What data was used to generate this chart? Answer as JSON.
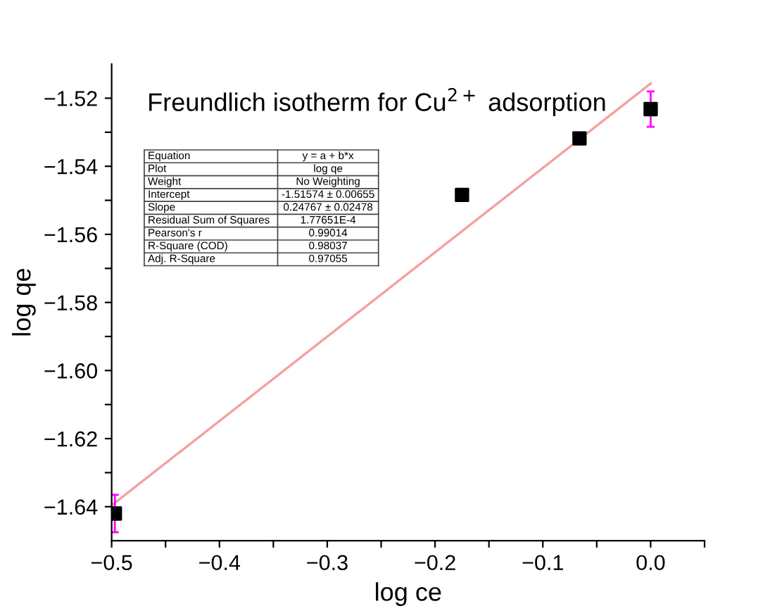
{
  "chart_data": {
    "type": "scatter",
    "title": "Freundlich isotherm for Cu$^{2+}$ adsorption",
    "xlabel": "log ce",
    "ylabel": "log qe",
    "series": [
      {
        "color": "#000000",
        "x": [
          -0.497,
          -0.175,
          -0.066,
          0.0
        ],
        "values": [
          -1.642,
          -1.5484,
          -1.5318,
          -1.5232
        ],
        "errors": [
          0.0055,
          null,
          null,
          0.0052
        ],
        "marker": "square"
      },
      {
        "type": "line",
        "color": "#f4a0a0",
        "x": [
          -0.5,
          0.0
        ],
        "values": [
          -1.6396,
          -1.5157
        ],
        "line_style": "solid"
      }
    ],
    "annotations": [
      "Equation",
      "y = a + b*x",
      "Plot",
      "log qe",
      "Weight",
      "No Weighting",
      "Intercept",
      "-1.51574 ± 0.00655",
      "Slope",
      "0.24767 ± 0.02478",
      "Residual Sum of Squares",
      "1.77651E-4",
      "Pearson's r",
      "0.99014",
      "R-Square (COD)",
      "0.98037",
      "Adj. R-Square",
      "0.97055"
    ],
    "xlim": [
      -0.5,
      0.05
    ],
    "xticks": [
      {
        "value": -0.5,
        "label": "−0.5"
      },
      {
        "value": -0.45,
        "label": null
      },
      {
        "value": -0.4,
        "label": "−0.4"
      },
      {
        "value": -0.35,
        "label": null
      },
      {
        "value": -0.3,
        "label": "−0.3"
      },
      {
        "value": -0.25,
        "label": null
      },
      {
        "value": -0.2,
        "label": "−0.2"
      },
      {
        "value": -0.15,
        "label": null
      },
      {
        "value": -0.1,
        "label": "−0.1"
      },
      {
        "value": -0.05,
        "label": null
      },
      {
        "value": 0.0,
        "label": "0.0"
      },
      {
        "value": 0.05,
        "label": null
      }
    ],
    "ylim": [
      -1.65,
      -1.51
    ],
    "yticks": [
      {
        "value": -1.64,
        "label": "−1.64"
      },
      {
        "value": -1.63,
        "label": null
      },
      {
        "value": -1.62,
        "label": "−1.62"
      },
      {
        "value": -1.61,
        "label": null
      },
      {
        "value": -1.6,
        "label": "−1.60"
      },
      {
        "value": -1.59,
        "label": null
      },
      {
        "value": -1.58,
        "label": "−1.58"
      },
      {
        "value": -1.57,
        "label": null
      },
      {
        "value": -1.56,
        "label": "−1.56"
      },
      {
        "value": -1.55,
        "label": null
      },
      {
        "value": -1.54,
        "label": "−1.54"
      },
      {
        "value": -1.53,
        "label": null
      },
      {
        "value": -1.52,
        "label": "−1.52"
      }
    ]
  }
}
